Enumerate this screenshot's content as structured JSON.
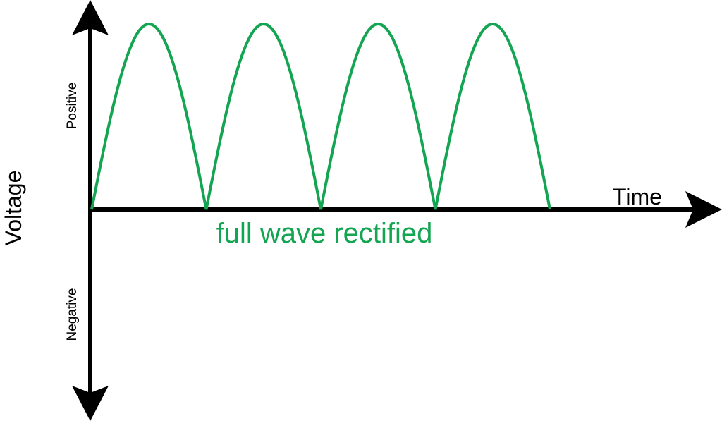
{
  "diagram": {
    "y_axis_label": "Voltage",
    "positive_label": "Positive",
    "negative_label": "Negative",
    "x_axis_label": "Time",
    "waveform_label": "full wave rectified"
  },
  "waveform": {
    "type": "full wave rectified sine",
    "half_cycles": 4,
    "color": "#13a552"
  },
  "colors": {
    "axis": "#000000",
    "wave": "#13a552",
    "background": "#ffffff"
  }
}
